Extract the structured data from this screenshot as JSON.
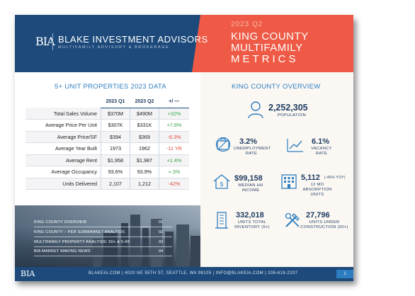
{
  "header": {
    "logo_mark": "BIA",
    "brand": "BLAKE INVESTMENT ADVISORS",
    "brand_sub": "MULTIFAMILY ADVISORY & BROKERAGE",
    "year": "2023 Q2",
    "report_line1": "KING COUNTY",
    "report_line2": "MULTIFAMILY",
    "report_line3": "METRICS"
  },
  "table": {
    "title": "5+ UNIT PROPERTIES 2023 DATA",
    "columns": [
      "2023 Q1",
      "2023 Q2",
      "+/ —"
    ],
    "rows": [
      {
        "label": "Total Sales Volume",
        "q1": "$370M",
        "q2": "$490M",
        "change": "+32%",
        "dir": "pos"
      },
      {
        "label": "Average Price Per Unit",
        "q1": "$307K",
        "q2": "$331K",
        "change": "+7.8%",
        "dir": "pos"
      },
      {
        "label": "Average Price/SF",
        "q1": "$394",
        "q2": "$369",
        "change": "-6.3%",
        "dir": "neg"
      },
      {
        "label": "Average Year Built",
        "q1": "1973",
        "q2": "1962",
        "change": "-11 YR",
        "dir": "neg"
      },
      {
        "label": "Average Rent",
        "q1": "$1,958",
        "q2": "$1,987",
        "change": "+1.4%",
        "dir": "pos"
      },
      {
        "label": "Average Occupancy",
        "q1": "93.6%",
        "q2": "93.9%",
        "change": "+.3%",
        "dir": "pos"
      },
      {
        "label": "Units Delivered",
        "q1": "2,107",
        "q2": "1,212",
        "change": "-42%",
        "dir": "neg"
      }
    ]
  },
  "toc": [
    {
      "label": "KING COUNTY OVERVIEW",
      "page": "01"
    },
    {
      "label": "KING COUNTY – PER SUBMARKET ANALYSIS",
      "page": "02"
    },
    {
      "label": "MULTIFAMILY PROPERTY ANALYSIS: 50+ & 5-49",
      "page": "03"
    },
    {
      "label": "BIA MARKET MAKING NEWS",
      "page": "04"
    }
  ],
  "overview": {
    "title": "KING COUNTY OVERVIEW",
    "population": {
      "value": "2,252,305",
      "label": "POPULATION"
    },
    "unemployment": {
      "value": "3.2%",
      "label1": "UNEMPLOYMENT",
      "label2": "RATE"
    },
    "vacancy": {
      "value": "6.1%",
      "label1": "VACANCY",
      "label2": "RATE"
    },
    "income": {
      "value": "$99,158",
      "label1": "MEDIAN HH",
      "label2": "INCOME"
    },
    "absorption": {
      "value": "5,112",
      "note": "(-46% YOY)",
      "label1": "12 MO ABSORPTION",
      "label2": "UNITS"
    },
    "inventory": {
      "value": "332,018",
      "label1": "UNITS TOTAL",
      "label2": "INVENTORY (5+)"
    },
    "construction": {
      "value": "27,796",
      "label1": "UNITS UNDER",
      "label2": "CONSTRUCTION (50+)"
    }
  },
  "footer": {
    "logo": "BIA",
    "text": "BLAKEIA.COM | 4020 NE 55TH ST, SEATTLE, WA 98105 | INFO@BLAKEIA.COM | 206-618-2207",
    "page": "1"
  },
  "colors": {
    "navy": "#1d4a7b",
    "coral": "#ee5a45",
    "blue": "#2d7ec0"
  }
}
